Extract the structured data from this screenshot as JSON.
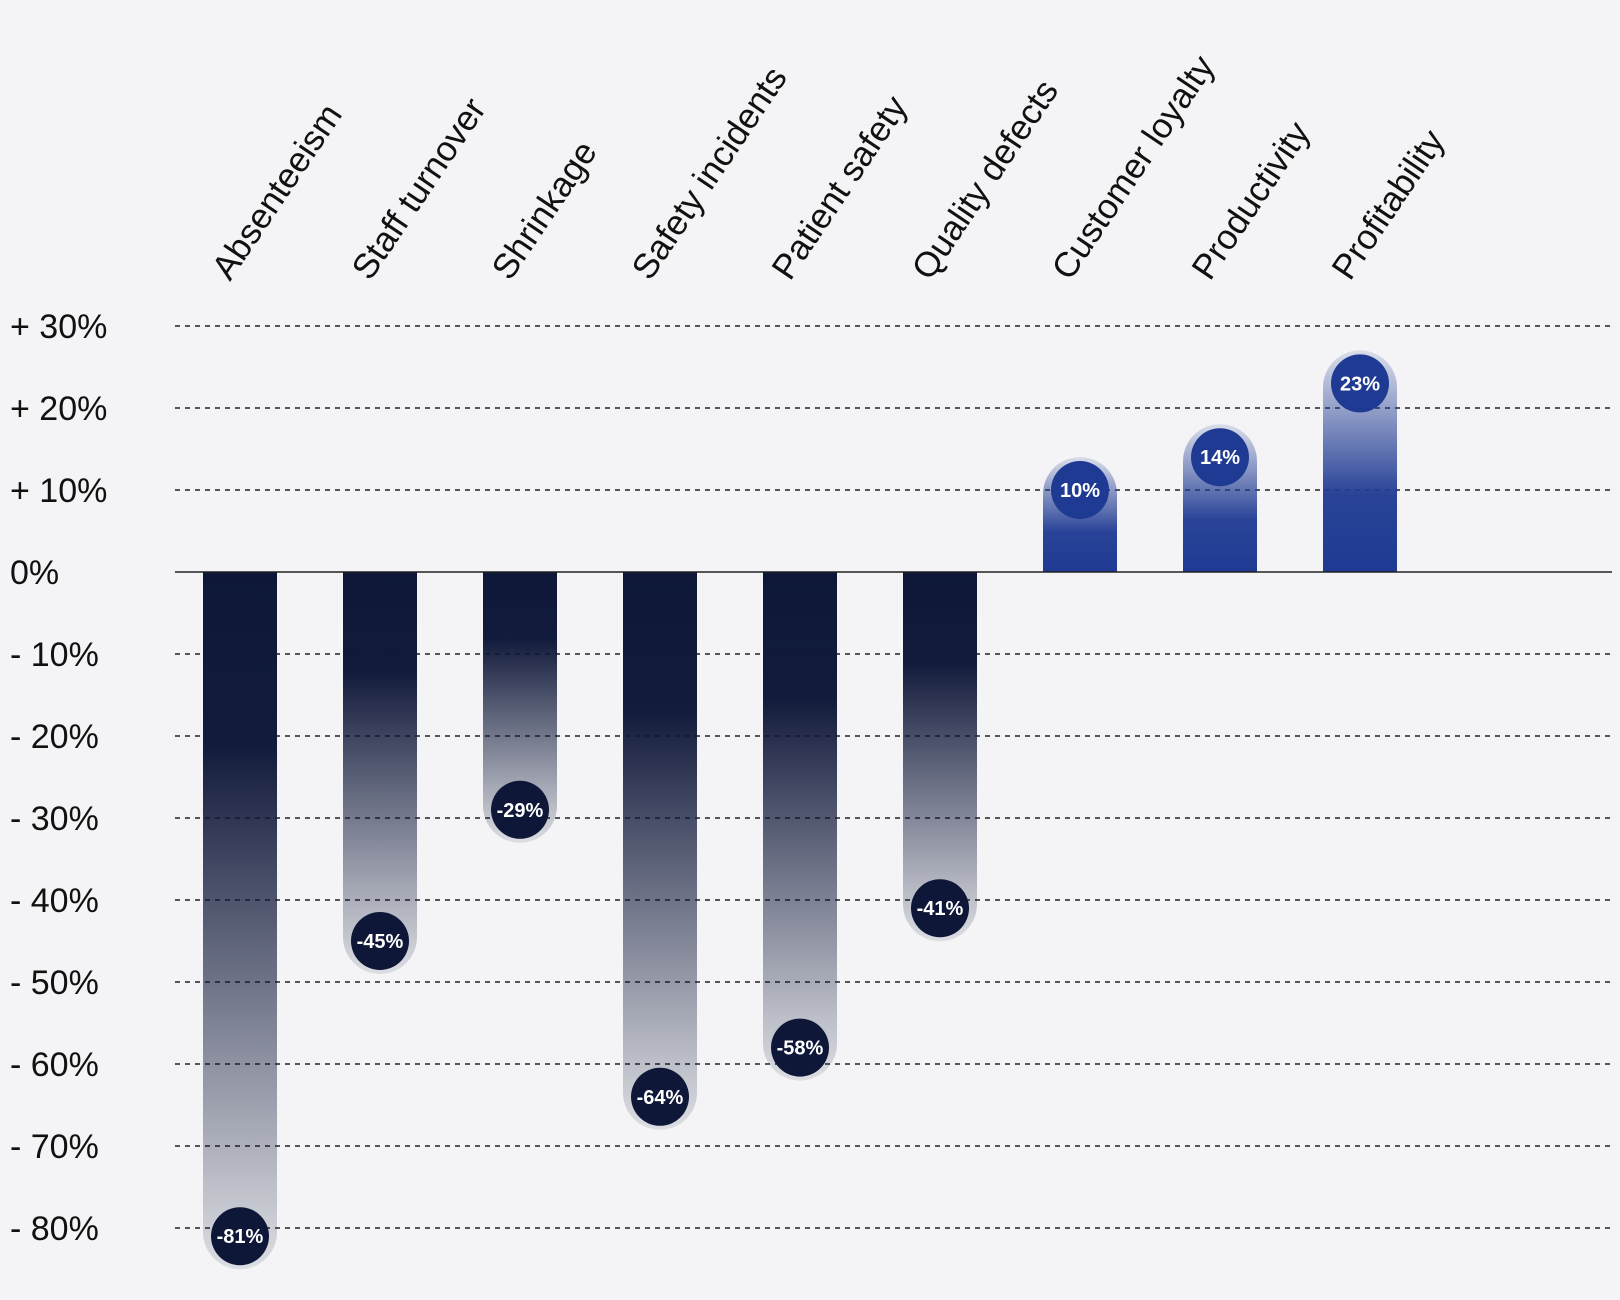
{
  "chart_data": {
    "type": "bar",
    "title": "",
    "xlabel": "",
    "ylabel": "",
    "categories": [
      "Absenteeism",
      "Staff turnover",
      "Shrinkage",
      "Safety incidents",
      "Patient safety",
      "Quality defects",
      "Customer loyalty",
      "Productivity",
      "Profitability"
    ],
    "values": [
      -81,
      -45,
      -29,
      -64,
      -58,
      -41,
      10,
      14,
      23
    ],
    "value_labels": [
      "-81%",
      "-45%",
      "-29%",
      "-64%",
      "-58%",
      "-41%",
      "10%",
      "14%",
      "23%"
    ],
    "ylim": [
      -80,
      30
    ],
    "yticks": [
      30,
      20,
      10,
      0,
      -10,
      -20,
      -30,
      -40,
      -50,
      -60,
      -70,
      -80
    ],
    "ytick_labels": [
      "+ 30%",
      "+ 20%",
      "+ 10%",
      "0%",
      "- 10%",
      "- 20%",
      "- 30%",
      "- 40%",
      "- 50%",
      "- 60%",
      "- 70%",
      "- 80%"
    ],
    "grid": true,
    "legend": "none",
    "colors": {
      "negative": "#0e1738",
      "positive": "#1f3a93",
      "negative_badge": "#0e1738",
      "positive_badge": "#1f3a93",
      "background": "#f4f4f6"
    }
  }
}
